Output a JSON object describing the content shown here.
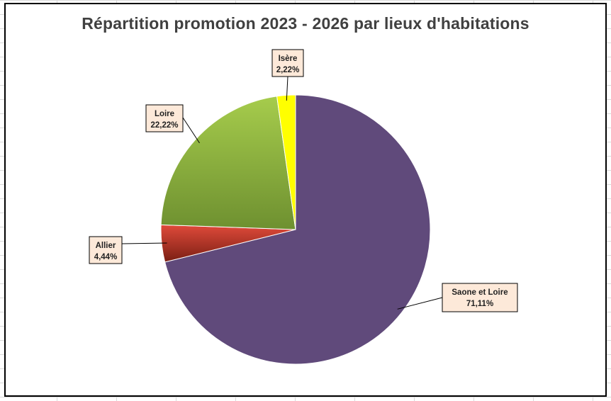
{
  "chart_data": {
    "type": "pie",
    "title": "Répartition promotion 2023 - 2026 par lieux d'habitations",
    "slices": [
      {
        "name": "Saone et Loire",
        "value": 71.11,
        "label": "71,11%",
        "color": "#604a7b"
      },
      {
        "name": "Allier",
        "value": 4.44,
        "label": "4,44%",
        "color": "#c0392b"
      },
      {
        "name": "Loire",
        "value": 22.22,
        "label": "22,22%",
        "color": "#8ab440"
      },
      {
        "name": "Isère",
        "value": 2.22,
        "label": "2,22%",
        "color": "#ffff00"
      }
    ],
    "start_angle_deg": 0,
    "direction": "clockwise",
    "legend": "none",
    "data_labels": "outside-with-leader-lines"
  }
}
